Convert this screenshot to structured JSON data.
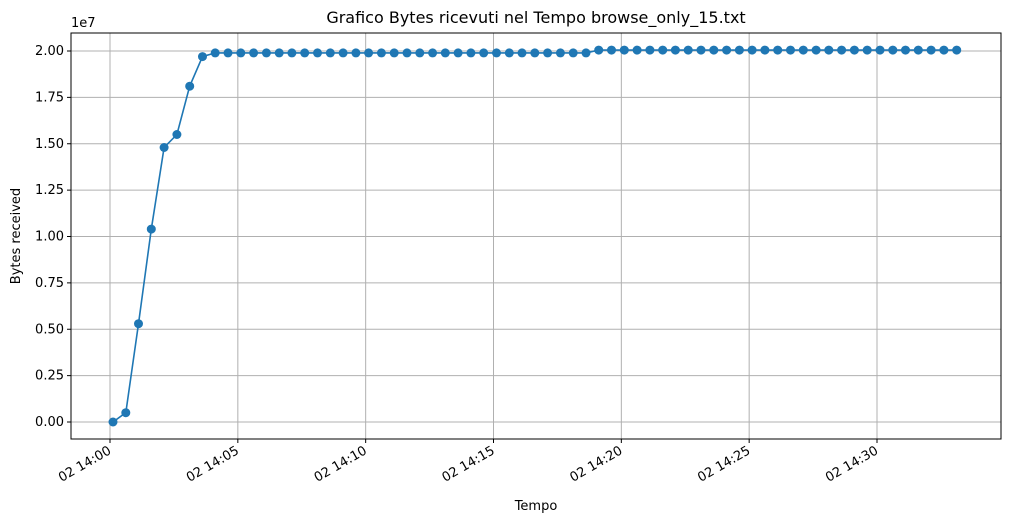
{
  "chart_data": {
    "type": "line",
    "title": "Grafico Bytes ricevuti nel Tempo browse_only_15.txt",
    "xlabel": "Tempo",
    "ylabel": "Bytes received",
    "y_offset_text": "1e7",
    "grid": true,
    "line_color": "#1f77b4",
    "marker": "circle",
    "x_tick_labels": [
      "02 14:00",
      "02 14:05",
      "02 14:10",
      "02 14:15",
      "02 14:20",
      "02 14:25",
      "02 14:30"
    ],
    "y_tick_labels": [
      "0.00",
      "0.25",
      "0.50",
      "0.75",
      "1.00",
      "1.25",
      "1.50",
      "1.75",
      "2.00"
    ],
    "ylim": [
      -1000000,
      21000000
    ],
    "xlim": [
      "14:00",
      "14:35"
    ],
    "series": [
      {
        "x": [
          "14:00:07",
          "14:00:37",
          "14:01:07",
          "14:01:37",
          "14:02:07",
          "14:02:37",
          "14:03:07",
          "14:03:37",
          "14:04:07",
          "14:04:37",
          "14:05:07",
          "14:05:37",
          "14:06:07",
          "14:06:37",
          "14:07:07",
          "14:07:37",
          "14:08:07",
          "14:08:37",
          "14:09:07",
          "14:09:37",
          "14:10:07",
          "14:10:37",
          "14:11:07",
          "14:11:37",
          "14:12:07",
          "14:12:37",
          "14:13:07",
          "14:13:37",
          "14:14:07",
          "14:14:37",
          "14:15:07",
          "14:15:37",
          "14:16:07",
          "14:16:37",
          "14:17:07",
          "14:17:37",
          "14:18:07",
          "14:18:37",
          "14:19:07",
          "14:19:37",
          "14:20:07",
          "14:20:37",
          "14:21:07",
          "14:21:37",
          "14:22:07",
          "14:22:37",
          "14:23:07",
          "14:23:37",
          "14:24:07",
          "14:24:37",
          "14:25:07",
          "14:25:37",
          "14:26:07",
          "14:26:37",
          "14:27:07",
          "14:27:37",
          "14:28:07",
          "14:28:37",
          "14:29:07",
          "14:29:37",
          "14:30:07",
          "14:30:37",
          "14:31:07",
          "14:31:37",
          "14:32:07",
          "14:32:37",
          "14:33:07"
        ],
        "values": [
          0,
          500000,
          5300000,
          10400000,
          14800000,
          15500000,
          18100000,
          19700000,
          19900000,
          19900000,
          19900000,
          19900000,
          19900000,
          19900000,
          19900000,
          19900000,
          19900000,
          19900000,
          19900000,
          19900000,
          19900000,
          19900000,
          19900000,
          19900000,
          19900000,
          19900000,
          19900000,
          19900000,
          19900000,
          19900000,
          19900000,
          19900000,
          19900000,
          19900000,
          19900000,
          19900000,
          19900000,
          19900000,
          20050000,
          20050000,
          20050000,
          20050000,
          20050000,
          20050000,
          20050000,
          20050000,
          20050000,
          20050000,
          20050000,
          20050000,
          20050000,
          20050000,
          20050000,
          20050000,
          20050000,
          20050000,
          20050000,
          20050000,
          20050000,
          20050000,
          20050000,
          20050000,
          20050000,
          20050000,
          20050000,
          20050000,
          20050000
        ]
      }
    ]
  }
}
